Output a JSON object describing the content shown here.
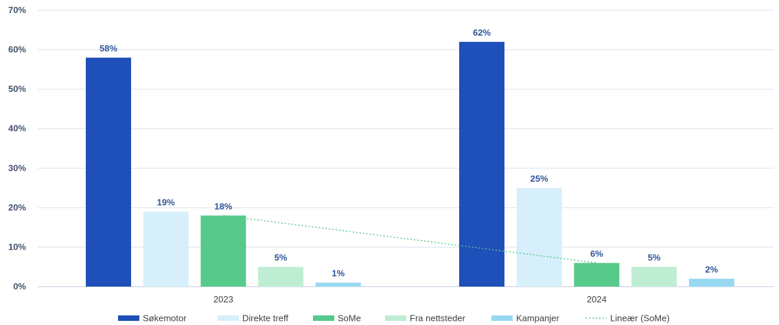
{
  "chart_data": {
    "type": "bar",
    "title": "",
    "xlabel": "",
    "ylabel": "",
    "categories": [
      "2023",
      "2024"
    ],
    "ylim": [
      0,
      70
    ],
    "yticks": [
      0,
      10,
      20,
      30,
      40,
      50,
      60,
      70
    ],
    "ytick_labels": [
      "0%",
      "10%",
      "20%",
      "30%",
      "40%",
      "50%",
      "60%",
      "70%"
    ],
    "grid": true,
    "legend_position": "bottom",
    "series": [
      {
        "name": "Søkemotor",
        "values": [
          58,
          62
        ],
        "labels": [
          "58%",
          "62%"
        ],
        "color": "#1F4FB8"
      },
      {
        "name": "Direkte treff",
        "values": [
          19,
          25
        ],
        "labels": [
          "19%",
          "25%"
        ],
        "color": "#D6EFFB"
      },
      {
        "name": "SoMe",
        "values": [
          18,
          6
        ],
        "labels": [
          "18%",
          "6%"
        ],
        "color": "#57C98A"
      },
      {
        "name": "Fra nettsteder",
        "values": [
          5,
          5
        ],
        "labels": [
          "5%",
          "5%"
        ],
        "color": "#BFEDD3"
      },
      {
        "name": "Kampanjer",
        "values": [
          1,
          2
        ],
        "labels": [
          "1%",
          "2%"
        ],
        "color": "#97D8F1"
      }
    ],
    "trendline": {
      "name": "Lineær (SoMe)",
      "series": "SoMe",
      "values": [
        18,
        6
      ],
      "color": "#57C98A",
      "style": "dotted"
    }
  }
}
